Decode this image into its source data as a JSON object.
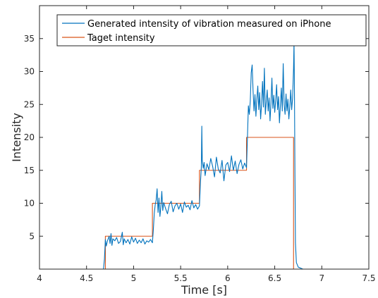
{
  "chart_data": {
    "type": "line",
    "title": "",
    "xlabel": "Time [s]",
    "ylabel": "Intensity",
    "xlim": [
      4,
      7.5
    ],
    "ylim": [
      0,
      40
    ],
    "x_ticks": [
      "4",
      "4.5",
      "5",
      "5.5",
      "6",
      "6.5",
      "7",
      "7.5"
    ],
    "y_ticks": [
      "5",
      "10",
      "15",
      "20",
      "25",
      "30",
      "35"
    ],
    "grid": false,
    "legend_position": "top-right",
    "series": [
      {
        "name": "Generated intensity of vibration measured on iPhone",
        "color": "#0072BD",
        "points": [
          [
            4.0,
            0.0
          ],
          [
            4.6,
            0.0
          ],
          [
            4.68,
            0.0
          ],
          [
            4.69,
            1.5
          ],
          [
            4.7,
            4.5
          ],
          [
            4.71,
            3.5
          ],
          [
            4.72,
            4.2
          ],
          [
            4.74,
            5.0
          ],
          [
            4.75,
            3.9
          ],
          [
            4.76,
            5.4
          ],
          [
            4.77,
            3.6
          ],
          [
            4.78,
            4.6
          ],
          [
            4.8,
            4.3
          ],
          [
            4.82,
            4.8
          ],
          [
            4.84,
            3.9
          ],
          [
            4.86,
            4.2
          ],
          [
            4.88,
            5.6
          ],
          [
            4.89,
            3.7
          ],
          [
            4.9,
            4.6
          ],
          [
            4.92,
            4.0
          ],
          [
            4.94,
            4.5
          ],
          [
            4.96,
            3.8
          ],
          [
            4.98,
            4.9
          ],
          [
            5.0,
            4.1
          ],
          [
            5.02,
            4.7
          ],
          [
            5.04,
            3.9
          ],
          [
            5.06,
            4.4
          ],
          [
            5.08,
            4.0
          ],
          [
            5.1,
            4.6
          ],
          [
            5.12,
            3.8
          ],
          [
            5.14,
            4.3
          ],
          [
            5.16,
            4.1
          ],
          [
            5.18,
            4.5
          ],
          [
            5.2,
            4.0
          ],
          [
            5.21,
            6.0
          ],
          [
            5.22,
            8.5
          ],
          [
            5.23,
            9.8
          ],
          [
            5.24,
            10.5
          ],
          [
            5.25,
            12.2
          ],
          [
            5.26,
            8.6
          ],
          [
            5.27,
            10.8
          ],
          [
            5.28,
            8.0
          ],
          [
            5.29,
            9.5
          ],
          [
            5.3,
            11.8
          ],
          [
            5.31,
            8.9
          ],
          [
            5.32,
            10.1
          ],
          [
            5.34,
            9.2
          ],
          [
            5.36,
            8.4
          ],
          [
            5.38,
            9.8
          ],
          [
            5.4,
            10.3
          ],
          [
            5.42,
            8.7
          ],
          [
            5.44,
            9.6
          ],
          [
            5.46,
            10.0
          ],
          [
            5.48,
            9.1
          ],
          [
            5.5,
            9.9
          ],
          [
            5.52,
            8.6
          ],
          [
            5.54,
            10.2
          ],
          [
            5.56,
            9.4
          ],
          [
            5.58,
            9.7
          ],
          [
            5.6,
            9.0
          ],
          [
            5.62,
            10.4
          ],
          [
            5.64,
            9.3
          ],
          [
            5.66,
            9.8
          ],
          [
            5.68,
            9.1
          ],
          [
            5.7,
            9.6
          ],
          [
            5.71,
            13.0
          ],
          [
            5.72,
            15.5
          ],
          [
            5.725,
            21.7
          ],
          [
            5.73,
            16.5
          ],
          [
            5.74,
            15.3
          ],
          [
            5.75,
            16.2
          ],
          [
            5.76,
            14.2
          ],
          [
            5.78,
            16.0
          ],
          [
            5.8,
            15.1
          ],
          [
            5.82,
            16.8
          ],
          [
            5.84,
            15.6
          ],
          [
            5.86,
            14.0
          ],
          [
            5.88,
            17.0
          ],
          [
            5.9,
            15.2
          ],
          [
            5.92,
            14.6
          ],
          [
            5.94,
            16.5
          ],
          [
            5.96,
            13.4
          ],
          [
            5.98,
            15.8
          ],
          [
            6.0,
            16.2
          ],
          [
            6.02,
            14.8
          ],
          [
            6.04,
            17.2
          ],
          [
            6.06,
            15.0
          ],
          [
            6.08,
            16.4
          ],
          [
            6.1,
            14.5
          ],
          [
            6.12,
            15.9
          ],
          [
            6.14,
            16.6
          ],
          [
            6.16,
            15.2
          ],
          [
            6.18,
            16.1
          ],
          [
            6.2,
            15.4
          ],
          [
            6.21,
            20.0
          ],
          [
            6.22,
            24.8
          ],
          [
            6.23,
            23.5
          ],
          [
            6.24,
            25.5
          ],
          [
            6.25,
            29.8
          ],
          [
            6.26,
            31.0
          ],
          [
            6.27,
            27.0
          ],
          [
            6.28,
            24.0
          ],
          [
            6.29,
            26.5
          ],
          [
            6.3,
            23.2
          ],
          [
            6.31,
            25.8
          ],
          [
            6.32,
            27.8
          ],
          [
            6.33,
            24.2
          ],
          [
            6.34,
            26.8
          ],
          [
            6.35,
            22.8
          ],
          [
            6.36,
            25.0
          ],
          [
            6.37,
            28.5
          ],
          [
            6.38,
            24.6
          ],
          [
            6.39,
            30.5
          ],
          [
            6.4,
            23.5
          ],
          [
            6.41,
            25.4
          ],
          [
            6.42,
            27.2
          ],
          [
            6.43,
            24.0
          ],
          [
            6.44,
            26.0
          ],
          [
            6.45,
            22.5
          ],
          [
            6.46,
            25.2
          ],
          [
            6.47,
            29.0
          ],
          [
            6.48,
            24.4
          ],
          [
            6.49,
            26.4
          ],
          [
            6.5,
            23.8
          ],
          [
            6.51,
            25.6
          ],
          [
            6.52,
            28.0
          ],
          [
            6.53,
            24.2
          ],
          [
            6.54,
            26.2
          ],
          [
            6.55,
            22.2
          ],
          [
            6.56,
            24.8
          ],
          [
            6.57,
            27.5
          ],
          [
            6.58,
            24.0
          ],
          [
            6.59,
            31.2
          ],
          [
            6.6,
            25.0
          ],
          [
            6.61,
            23.5
          ],
          [
            6.62,
            26.6
          ],
          [
            6.63,
            24.0
          ],
          [
            6.64,
            25.8
          ],
          [
            6.65,
            22.8
          ],
          [
            6.66,
            24.6
          ],
          [
            6.67,
            27.2
          ],
          [
            6.68,
            24.2
          ],
          [
            6.69,
            26.0
          ],
          [
            6.7,
            30.5
          ],
          [
            6.705,
            34.5
          ],
          [
            6.71,
            26.0
          ],
          [
            6.715,
            14.0
          ],
          [
            6.72,
            4.0
          ],
          [
            6.73,
            1.0
          ],
          [
            6.75,
            0.3
          ],
          [
            6.8,
            0.0
          ],
          [
            7.5,
            0.0
          ]
        ]
      },
      {
        "name": "Taget intensity",
        "color": "#D95319",
        "points": [
          [
            4.0,
            0
          ],
          [
            4.7,
            0
          ],
          [
            4.7,
            5
          ],
          [
            5.2,
            5
          ],
          [
            5.2,
            10
          ],
          [
            5.7,
            10
          ],
          [
            5.7,
            15
          ],
          [
            6.2,
            15
          ],
          [
            6.2,
            20
          ],
          [
            6.7,
            20
          ],
          [
            6.7,
            0
          ],
          [
            7.5,
            0
          ]
        ]
      }
    ]
  }
}
